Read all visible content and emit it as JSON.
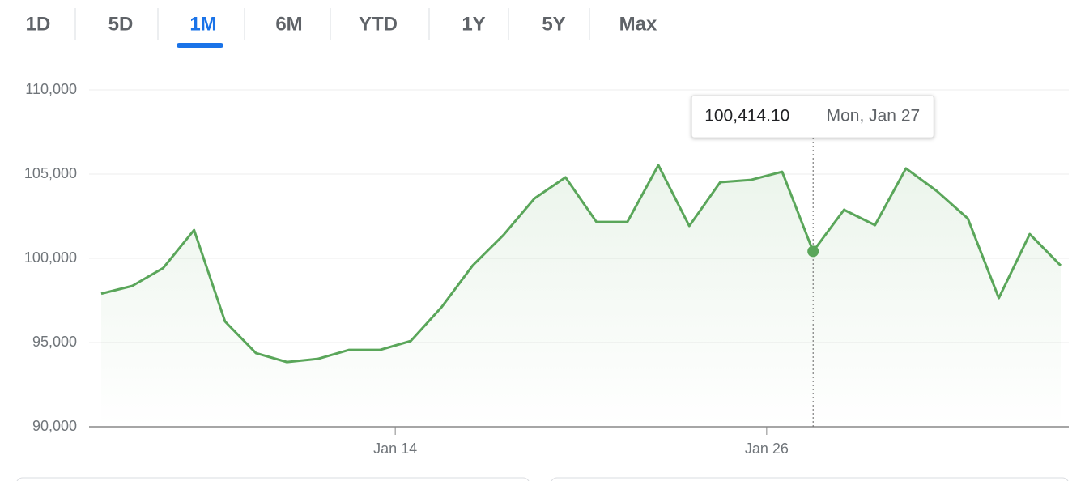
{
  "tabs": [
    "1D",
    "5D",
    "1M",
    "6M",
    "YTD",
    "1Y",
    "5Y",
    "Max"
  ],
  "selected_tab": 2,
  "chart_data": {
    "type": "line",
    "categories": [
      null,
      null,
      null,
      null,
      null,
      null,
      null,
      null,
      null,
      null,
      null,
      null,
      null,
      null,
      null,
      null,
      null,
      null,
      null,
      null,
      null,
      null,
      null,
      "Mon, Jan 27",
      null,
      null,
      null,
      null,
      null,
      null,
      null,
      null
    ],
    "series": [
      {
        "color": "#5aa65a",
        "values": [
          97900,
          98360,
          99420,
          101680,
          96250,
          94370,
          93840,
          94030,
          94560,
          94560,
          95090,
          97110,
          99570,
          101390,
          103560,
          104810,
          102160,
          102160,
          105530,
          101920,
          104520,
          104660,
          105140,
          100414.1,
          102880,
          101970,
          105340,
          103990,
          102360,
          97640,
          101440,
          99570
        ],
        "value_labels": [
          null,
          null,
          null,
          null,
          null,
          null,
          null,
          null,
          null,
          null,
          null,
          null,
          null,
          null,
          null,
          null,
          null,
          null,
          null,
          null,
          null,
          null,
          null,
          "100,414.10",
          null,
          null,
          null,
          null,
          null,
          null,
          null,
          null
        ]
      }
    ],
    "xlim": [
      0,
      31
    ],
    "xticks": [
      {
        "value": 9.5,
        "label": "Jan 14"
      },
      {
        "value": 21.5,
        "label": "Jan 26"
      }
    ],
    "ylim": [
      90000,
      110000
    ],
    "yticks": [
      {
        "value": 90000,
        "label": "90,000"
      },
      {
        "value": 95000,
        "label": "95,000"
      },
      {
        "value": 100000,
        "label": "100,000"
      },
      {
        "value": 105000,
        "label": "105,000"
      },
      {
        "value": 110000,
        "label": "110,000"
      }
    ],
    "grid": true
  }
}
